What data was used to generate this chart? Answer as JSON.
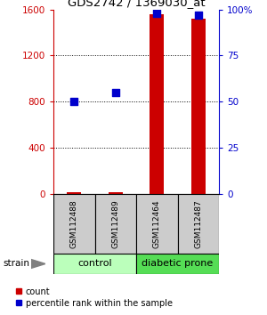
{
  "title": "GDS2742 / 1369030_at",
  "samples": [
    "GSM112488",
    "GSM112489",
    "GSM112464",
    "GSM112487"
  ],
  "counts": [
    10,
    12,
    1560,
    1520
  ],
  "percentile_ranks": [
    50,
    55,
    98,
    97
  ],
  "ylim_left": [
    0,
    1600
  ],
  "ylim_right": [
    0,
    100
  ],
  "yticks_left": [
    0,
    400,
    800,
    1200,
    1600
  ],
  "yticks_right": [
    0,
    25,
    50,
    75,
    100
  ],
  "ytick_labels_right": [
    "0",
    "25",
    "50",
    "75",
    "100%"
  ],
  "bar_color": "#cc0000",
  "dot_color": "#0000cc",
  "control_color": "#bbffbb",
  "diabetic_color": "#55dd55",
  "sample_box_color": "#cccccc",
  "bg_color": "#ffffff",
  "left_tick_color": "#cc0000",
  "right_tick_color": "#0000cc",
  "bar_width": 0.35,
  "dot_size": 30,
  "grid_yticks": [
    400,
    800,
    1200
  ]
}
